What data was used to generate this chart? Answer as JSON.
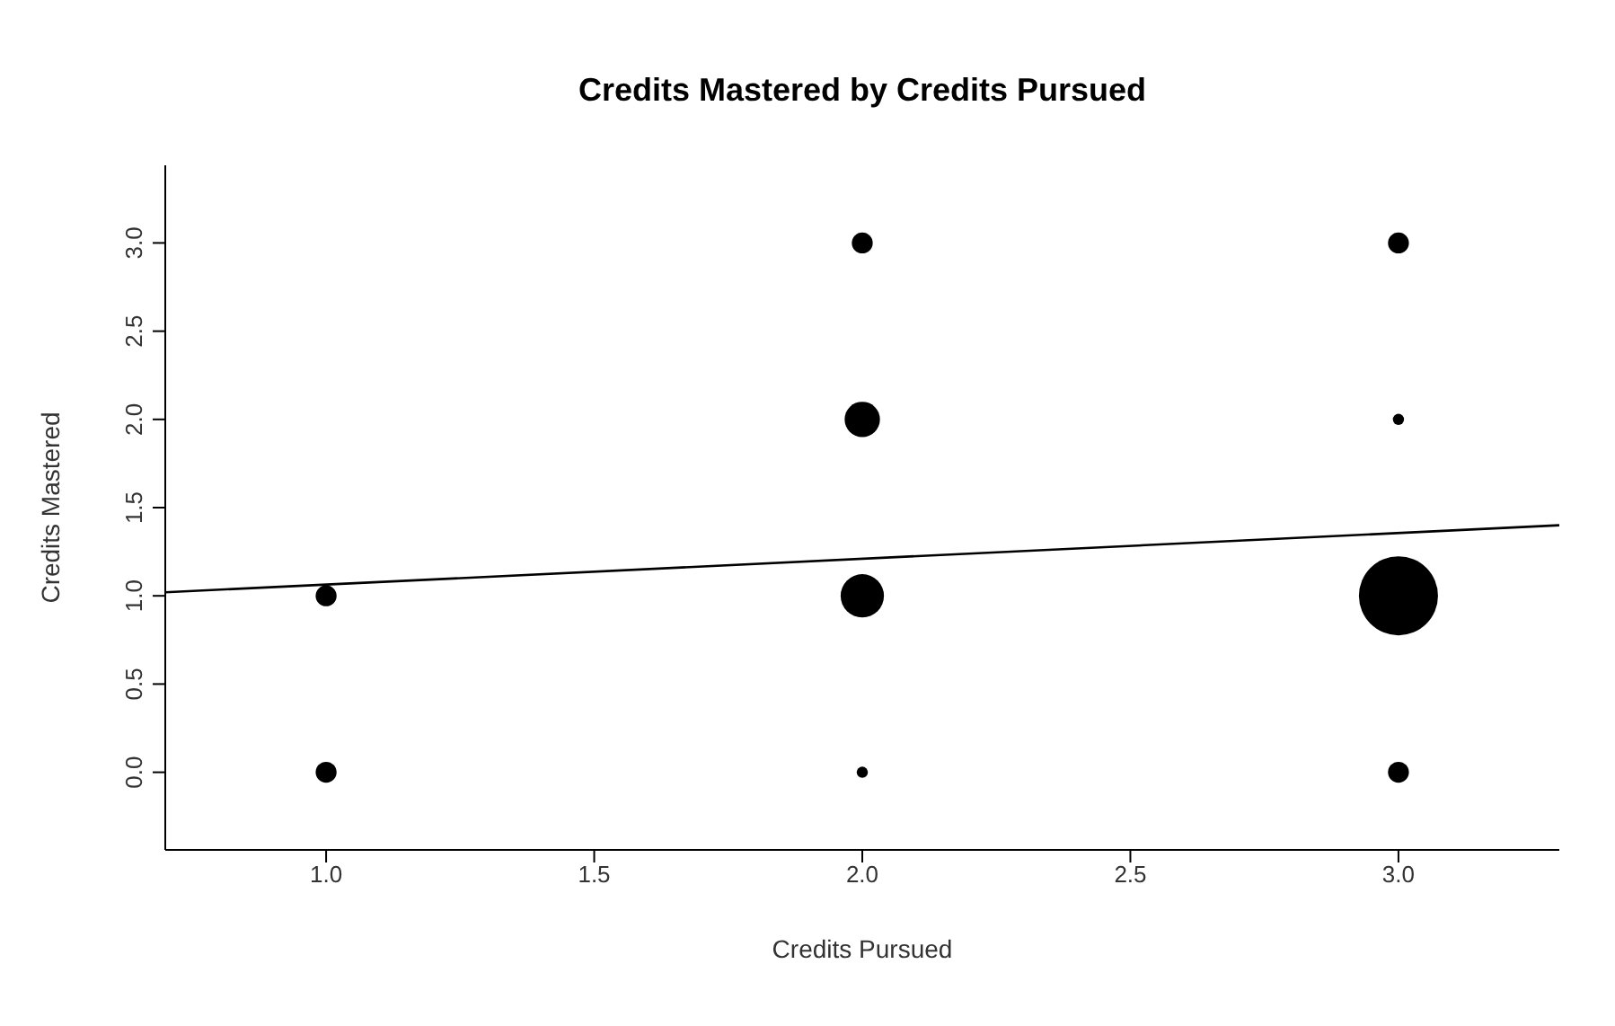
{
  "chart_data": {
    "type": "bubble",
    "title": "Credits Mastered by Credits Pursued",
    "xlabel": "Credits Pursued",
    "ylabel": "Credits Mastered",
    "xlim": [
      0.7,
      3.3
    ],
    "xticks": [
      {
        "value": 1,
        "label": "1.0"
      },
      {
        "value": 1.5,
        "label": "1.5"
      },
      {
        "value": 2,
        "label": "2.0"
      },
      {
        "value": 2.5,
        "label": "2.5"
      },
      {
        "value": 3,
        "label": "3.0"
      }
    ],
    "ylim": [
      -0.44,
      3.44
    ],
    "yticks": [
      {
        "value": 0,
        "label": "0.0"
      },
      {
        "value": 0.5,
        "label": "0.5"
      },
      {
        "value": 1,
        "label": "1.0"
      },
      {
        "value": 1.5,
        "label": "1.5"
      },
      {
        "value": 2,
        "label": "2.0"
      },
      {
        "value": 2.5,
        "label": "2.5"
      },
      {
        "value": 3,
        "label": "3.0"
      }
    ],
    "marker": "circle",
    "series": [
      {
        "color": "#000000",
        "x": [
          1,
          1,
          2,
          2,
          2,
          2,
          3,
          3,
          3,
          3
        ],
        "values": [
          1,
          0,
          3,
          2,
          1,
          0,
          3,
          2,
          1,
          0
        ],
        "sizes": [
          0.07,
          0.07,
          0.07,
          0.2,
          0.3,
          0.02,
          0.07,
          0.02,
          1,
          0.07
        ]
      },
      {
        "type": "line",
        "color": "#000000",
        "x": [
          0.7,
          3.3
        ],
        "values": [
          1.02,
          1.4
        ],
        "line_style": "solid",
        "marker": "none"
      }
    ]
  }
}
